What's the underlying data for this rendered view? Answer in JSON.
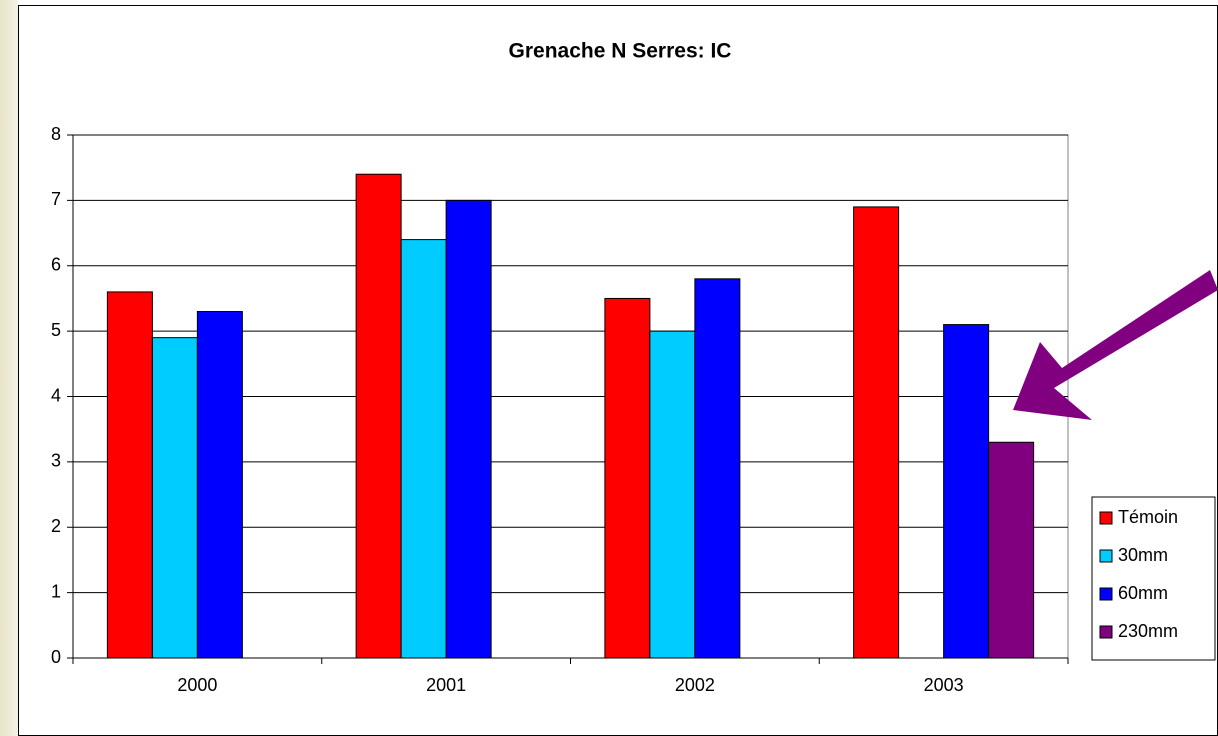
{
  "chart_data": {
    "type": "bar",
    "title": "Grenache N Serres: IC",
    "categories": [
      "2000",
      "2001",
      "2002",
      "2003"
    ],
    "series": [
      {
        "name": "Témoin",
        "color": "#ff0000",
        "values": [
          5.6,
          7.4,
          5.5,
          6.9
        ]
      },
      {
        "name": "30mm",
        "color": "#00ccff",
        "values": [
          4.9,
          6.4,
          5.0,
          null
        ]
      },
      {
        "name": "60mm",
        "color": "#0000ff",
        "values": [
          5.3,
          7.0,
          5.8,
          5.1
        ]
      },
      {
        "name": "230mm",
        "color": "#800080",
        "values": [
          null,
          null,
          null,
          3.3
        ]
      }
    ],
    "ylim": [
      0,
      8
    ],
    "yticks": [
      0,
      1,
      2,
      3,
      4,
      5,
      6,
      7,
      8
    ],
    "grid": true,
    "legend": "right"
  }
}
